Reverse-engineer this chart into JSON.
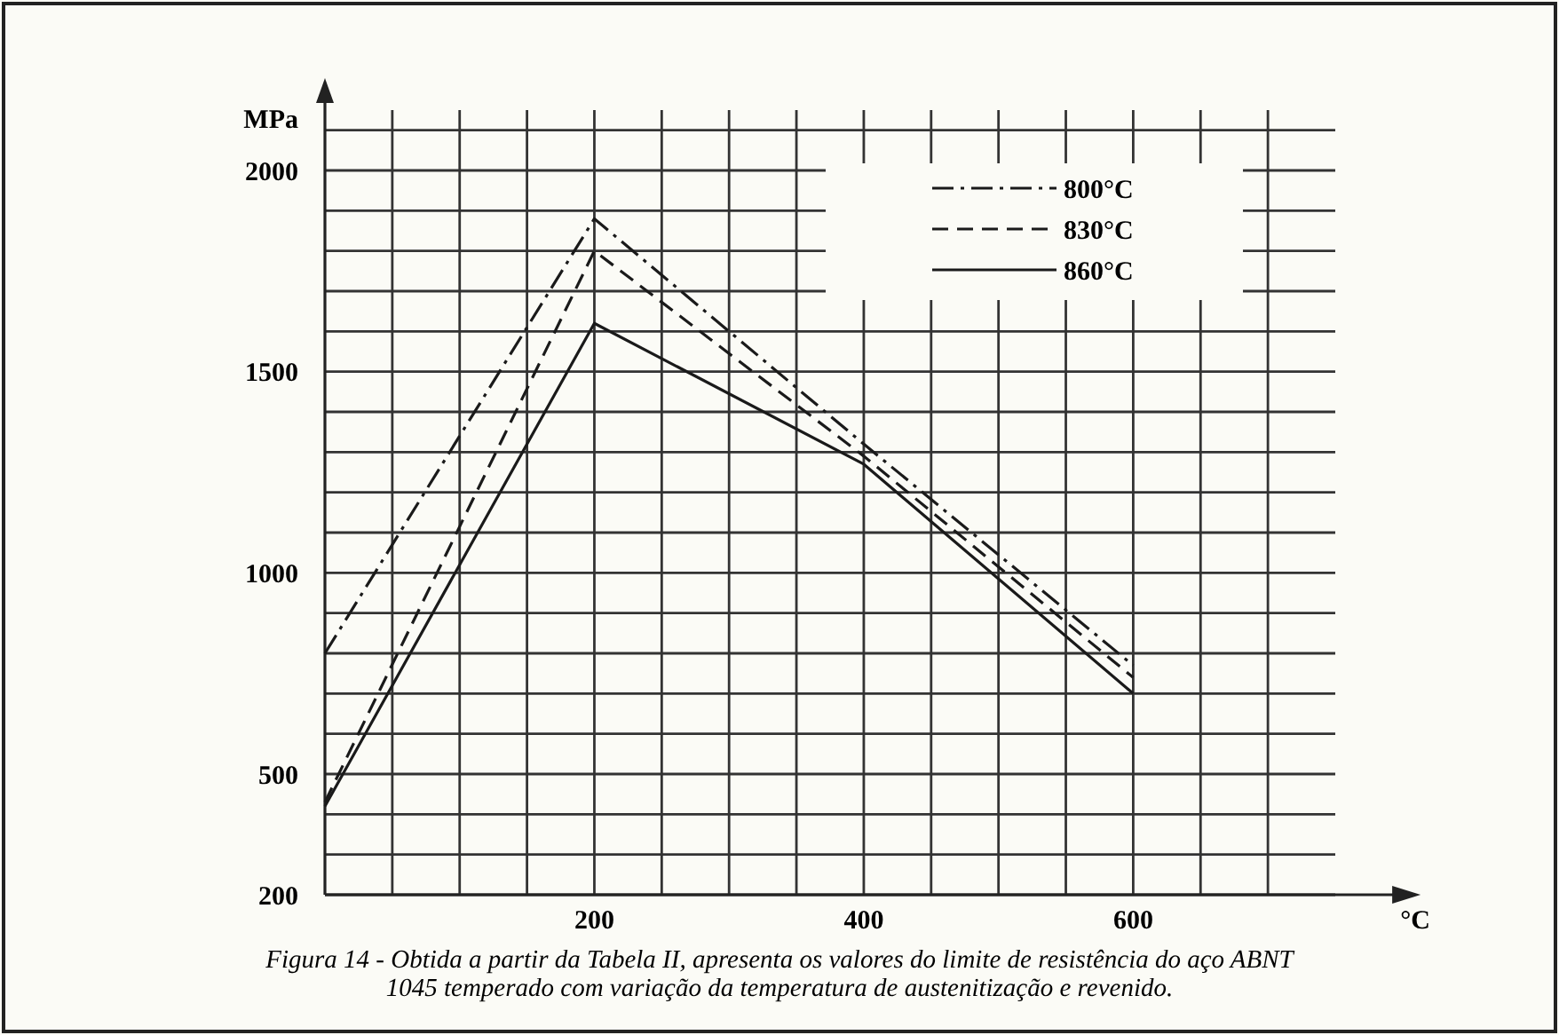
{
  "chart_data": {
    "type": "line",
    "ylabel": "MPa",
    "xlabel": "°C",
    "annotations": [
      "Figura 14 - Obtida a partir da Tabela II, apresenta os valores do limite de resistência do aço ABNT 1045 temperado com variação da temperatura de austenitização e revenido."
    ],
    "x": [
      0,
      200,
      400,
      600
    ],
    "series": [
      {
        "name": "800°C",
        "color": "#1a1a1a",
        "line_style": "dashdot",
        "values": [
          800,
          1880,
          1320,
          770
        ]
      },
      {
        "name": "830°C",
        "color": "#1a1a1a",
        "line_style": "dashed",
        "values": [
          430,
          1800,
          1290,
          740
        ]
      },
      {
        "name": "860°C",
        "color": "#1a1a1a",
        "line_style": "solid",
        "values": [
          420,
          1620,
          1270,
          700
        ]
      }
    ],
    "xlim": [
      0,
      750
    ],
    "xticks": [
      {
        "value": 50,
        "label": null
      },
      {
        "value": 100,
        "label": null
      },
      {
        "value": 150,
        "label": null
      },
      200,
      {
        "value": 250,
        "label": null
      },
      {
        "value": 300,
        "label": null
      },
      {
        "value": 350,
        "label": null
      },
      400,
      {
        "value": 450,
        "label": null
      },
      {
        "value": 500,
        "label": null
      },
      {
        "value": 550,
        "label": null
      },
      600,
      {
        "value": 650,
        "label": null
      },
      {
        "value": 700,
        "label": null
      }
    ],
    "ylim": [
      200,
      2150
    ],
    "yticks": [
      200,
      {
        "value": 300,
        "label": null
      },
      {
        "value": 400,
        "label": null
      },
      500,
      {
        "value": 600,
        "label": null
      },
      {
        "value": 700,
        "label": null
      },
      {
        "value": 800,
        "label": null
      },
      {
        "value": 900,
        "label": null
      },
      1000,
      {
        "value": 1100,
        "label": null
      },
      {
        "value": 1200,
        "label": null
      },
      {
        "value": 1300,
        "label": null
      },
      {
        "value": 1400,
        "label": null
      },
      1500,
      {
        "value": 1600,
        "label": null
      },
      {
        "value": 1700,
        "label": null
      },
      {
        "value": 1800,
        "label": null
      },
      {
        "value": 1900,
        "label": null
      },
      2000,
      {
        "value": 2100,
        "label": null
      }
    ],
    "grid": true,
    "legend": "top right",
    "marker": "none"
  }
}
